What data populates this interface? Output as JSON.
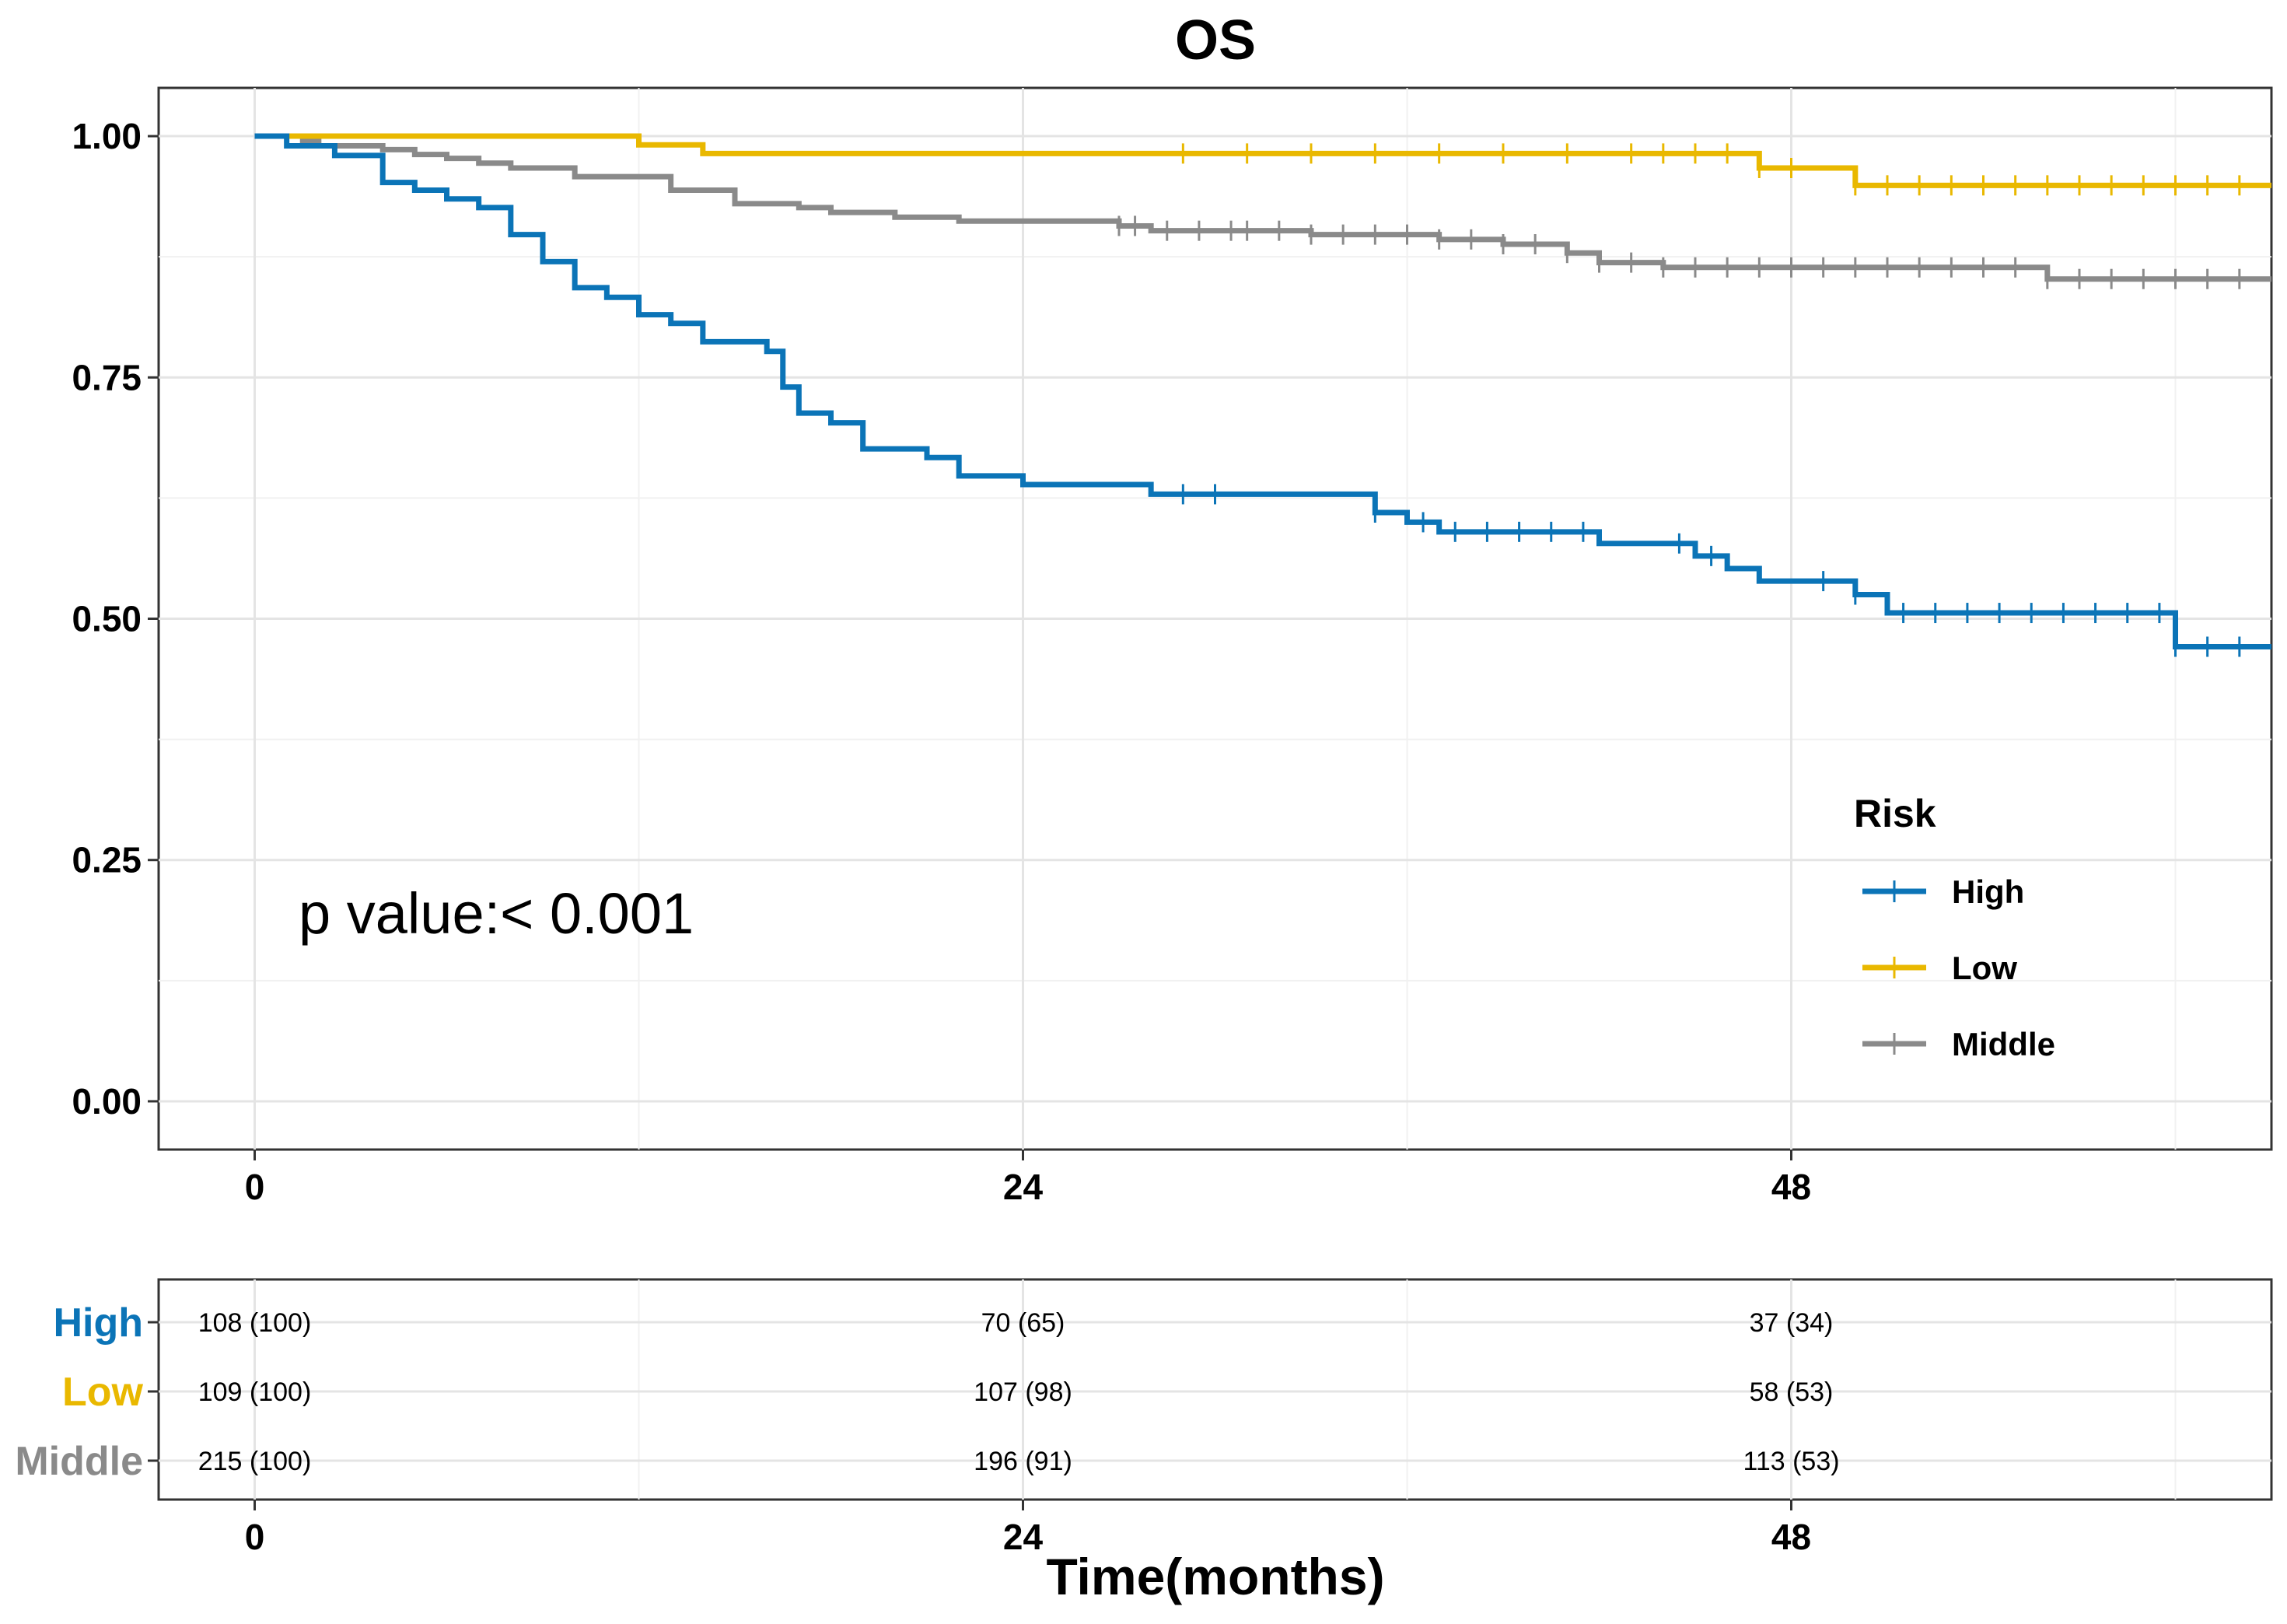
{
  "chart_data": {
    "type": "line",
    "subtype": "kaplan-meier",
    "title": "OS",
    "xlabel": "Time(months)",
    "ylabel": "",
    "xlim": [
      -3,
      63
    ],
    "ylim": [
      -0.05,
      1.05
    ],
    "x_ticks": [
      0,
      24,
      48
    ],
    "y_ticks": [
      0.0,
      0.25,
      0.5,
      0.75,
      1.0
    ],
    "y_tick_labels": [
      "0.00",
      "0.25",
      "0.50",
      "0.75",
      "1.00"
    ],
    "grid": true,
    "legend": {
      "title": "Risk",
      "position": "right"
    },
    "annotation": "p value:< 0.001",
    "series": [
      {
        "name": "High",
        "color": "#0B74B7",
        "steps": [
          [
            0,
            1.0
          ],
          [
            1,
            0.99
          ],
          [
            2.5,
            0.98
          ],
          [
            4,
            0.952
          ],
          [
            5,
            0.944
          ],
          [
            6,
            0.935
          ],
          [
            7,
            0.926
          ],
          [
            8,
            0.898
          ],
          [
            9,
            0.87
          ],
          [
            10,
            0.843
          ],
          [
            11,
            0.833
          ],
          [
            12,
            0.815
          ],
          [
            13,
            0.806
          ],
          [
            14,
            0.787
          ],
          [
            16,
            0.777
          ],
          [
            16.5,
            0.74
          ],
          [
            17,
            0.713
          ],
          [
            18,
            0.703
          ],
          [
            19,
            0.676
          ],
          [
            21,
            0.667
          ],
          [
            22,
            0.648
          ],
          [
            24,
            0.639
          ],
          [
            28,
            0.629
          ],
          [
            35,
            0.61
          ],
          [
            36,
            0.6
          ],
          [
            37,
            0.59
          ],
          [
            42,
            0.578
          ],
          [
            45,
            0.565
          ],
          [
            46,
            0.552
          ],
          [
            47,
            0.539
          ],
          [
            50,
            0.525
          ],
          [
            51,
            0.506
          ],
          [
            60,
            0.471
          ],
          [
            63,
            0.471
          ]
        ],
        "censor_times": [
          29,
          30,
          35,
          36.5,
          37.5,
          38.5,
          39.5,
          40.5,
          41.5,
          44.5,
          45.5,
          49,
          50,
          51.5,
          52.5,
          53.5,
          54.5,
          55.5,
          56.5,
          57.5,
          58.5,
          59.5,
          60,
          61,
          62
        ]
      },
      {
        "name": "Low",
        "color": "#E9B800",
        "steps": [
          [
            0,
            1.0
          ],
          [
            12,
            0.991
          ],
          [
            14,
            0.982
          ],
          [
            47,
            0.967
          ],
          [
            50,
            0.949
          ],
          [
            63,
            0.949
          ]
        ],
        "censor_times": [
          29,
          31,
          33,
          35,
          37,
          39,
          41,
          43,
          44,
          45,
          46,
          47,
          48,
          50,
          51,
          52,
          53,
          54,
          55,
          56,
          57,
          58,
          59,
          60,
          61,
          62
        ]
      },
      {
        "name": "Middle",
        "color": "#8A8A8A",
        "steps": [
          [
            0,
            1.0
          ],
          [
            1.5,
            0.995
          ],
          [
            2,
            0.99
          ],
          [
            4,
            0.986
          ],
          [
            5,
            0.981
          ],
          [
            6,
            0.977
          ],
          [
            7,
            0.972
          ],
          [
            8,
            0.967
          ],
          [
            10,
            0.958
          ],
          [
            13,
            0.944
          ],
          [
            15,
            0.93
          ],
          [
            17,
            0.926
          ],
          [
            18,
            0.921
          ],
          [
            20,
            0.916
          ],
          [
            22,
            0.912
          ],
          [
            27,
            0.907
          ],
          [
            28,
            0.902
          ],
          [
            33,
            0.898
          ],
          [
            37,
            0.893
          ],
          [
            39,
            0.888
          ],
          [
            41,
            0.879
          ],
          [
            42,
            0.869
          ],
          [
            44,
            0.864
          ],
          [
            56,
            0.852
          ],
          [
            63,
            0.852
          ]
        ],
        "censor_times": [
          27,
          27.5,
          28.5,
          29.5,
          30.5,
          31,
          32,
          33,
          34,
          35,
          36,
          37,
          38,
          39,
          40,
          41,
          42,
          43,
          44,
          45,
          46,
          47,
          48,
          49,
          50,
          51,
          52,
          53,
          54,
          55,
          56,
          57,
          58,
          59,
          60,
          61,
          62
        ]
      }
    ],
    "risk_table": {
      "time_points": [
        0,
        24,
        48
      ],
      "rows": [
        {
          "name": "High",
          "color": "#0B74B7",
          "values": [
            "108 (100)",
            "70 (65)",
            "37 (34)"
          ]
        },
        {
          "name": "Low",
          "color": "#E9B800",
          "values": [
            "109 (100)",
            "107 (98)",
            "58 (53)"
          ]
        },
        {
          "name": "Middle",
          "color": "#8A8A8A",
          "values": [
            "215 (100)",
            "196 (91)",
            "113 (53)"
          ]
        }
      ]
    }
  }
}
